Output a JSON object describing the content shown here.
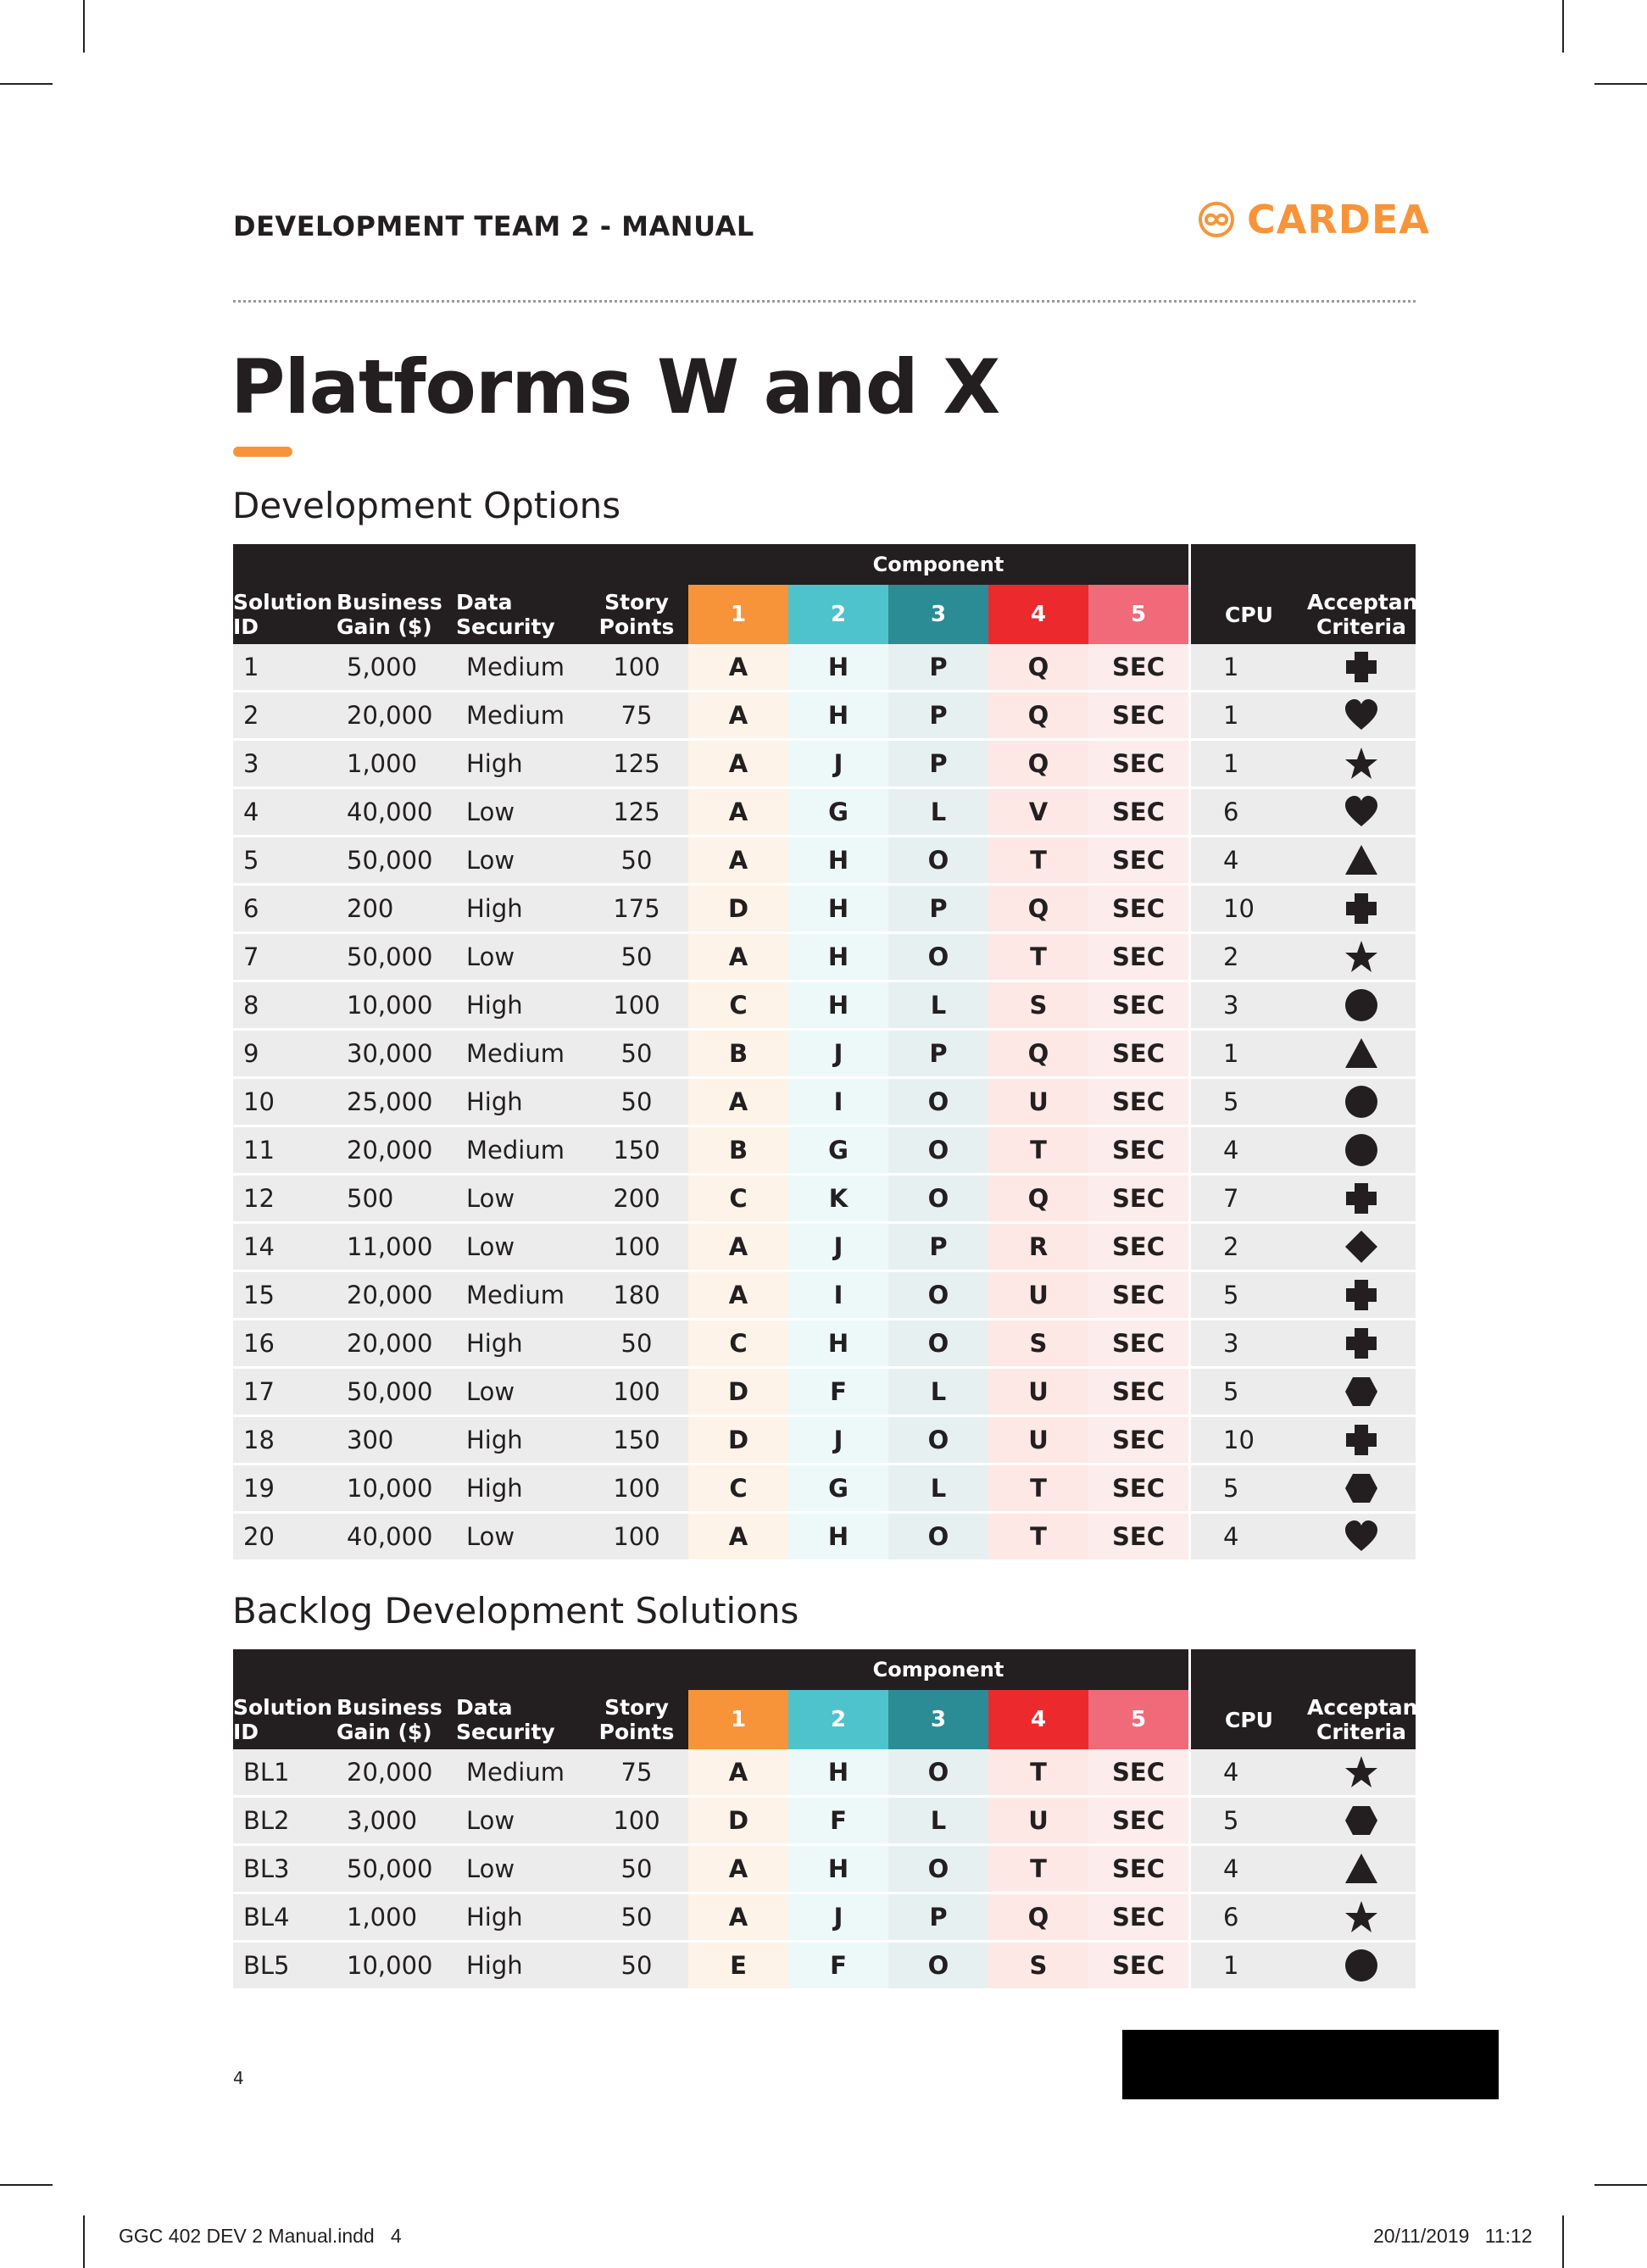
{
  "header": {
    "doc_title": "DEVELOPMENT TEAM 2 - MANUAL",
    "brand": "CARDEA",
    "brand_color": "#f7943a"
  },
  "page_title": "Platforms W and X",
  "columns": {
    "component_group": "Component",
    "solution_id": [
      "Solution",
      "ID"
    ],
    "business_gain": [
      "Business",
      "Gain ($)"
    ],
    "data_security": [
      "Data",
      "Security"
    ],
    "story_points": [
      "Story",
      "Points"
    ],
    "components": [
      "1",
      "2",
      "3",
      "4",
      "5"
    ],
    "cpu": "CPU",
    "acceptance": [
      "Acceptance",
      "Criteria"
    ]
  },
  "component_colors": [
    "#f7943a",
    "#4fc3cc",
    "#2b8c96",
    "#ec2a2d",
    "#f06a79"
  ],
  "development_options": {
    "title": "Development Options",
    "rows": [
      {
        "id": "1",
        "gain": "5,000",
        "security": "Medium",
        "points": "100",
        "c": [
          "A",
          "H",
          "P",
          "Q",
          "SEC"
        ],
        "cpu": "1",
        "criteria": "cross"
      },
      {
        "id": "2",
        "gain": "20,000",
        "security": "Medium",
        "points": "75",
        "c": [
          "A",
          "H",
          "P",
          "Q",
          "SEC"
        ],
        "cpu": "1",
        "criteria": "heart"
      },
      {
        "id": "3",
        "gain": "1,000",
        "security": "High",
        "points": "125",
        "c": [
          "A",
          "J",
          "P",
          "Q",
          "SEC"
        ],
        "cpu": "1",
        "criteria": "star"
      },
      {
        "id": "4",
        "gain": "40,000",
        "security": "Low",
        "points": "125",
        "c": [
          "A",
          "G",
          "L",
          "V",
          "SEC"
        ],
        "cpu": "6",
        "criteria": "heart"
      },
      {
        "id": "5",
        "gain": "50,000",
        "security": "Low",
        "points": "50",
        "c": [
          "A",
          "H",
          "O",
          "T",
          "SEC"
        ],
        "cpu": "4",
        "criteria": "triangle"
      },
      {
        "id": "6",
        "gain": "200",
        "security": "High",
        "points": "175",
        "c": [
          "D",
          "H",
          "P",
          "Q",
          "SEC"
        ],
        "cpu": "10",
        "criteria": "cross"
      },
      {
        "id": "7",
        "gain": "50,000",
        "security": "Low",
        "points": "50",
        "c": [
          "A",
          "H",
          "O",
          "T",
          "SEC"
        ],
        "cpu": "2",
        "criteria": "star"
      },
      {
        "id": "8",
        "gain": "10,000",
        "security": "High",
        "points": "100",
        "c": [
          "C",
          "H",
          "L",
          "S",
          "SEC"
        ],
        "cpu": "3",
        "criteria": "circle"
      },
      {
        "id": "9",
        "gain": "30,000",
        "security": "Medium",
        "points": "50",
        "c": [
          "B",
          "J",
          "P",
          "Q",
          "SEC"
        ],
        "cpu": "1",
        "criteria": "triangle"
      },
      {
        "id": "10",
        "gain": "25,000",
        "security": "High",
        "points": "50",
        "c": [
          "A",
          "I",
          "O",
          "U",
          "SEC"
        ],
        "cpu": "5",
        "criteria": "circle"
      },
      {
        "id": "11",
        "gain": "20,000",
        "security": "Medium",
        "points": "150",
        "c": [
          "B",
          "G",
          "O",
          "T",
          "SEC"
        ],
        "cpu": "4",
        "criteria": "circle"
      },
      {
        "id": "12",
        "gain": "500",
        "security": "Low",
        "points": "200",
        "c": [
          "C",
          "K",
          "O",
          "Q",
          "SEC"
        ],
        "cpu": "7",
        "criteria": "cross"
      },
      {
        "id": "14",
        "gain": "11,000",
        "security": "Low",
        "points": "100",
        "c": [
          "A",
          "J",
          "P",
          "R",
          "SEC"
        ],
        "cpu": "2",
        "criteria": "diamond"
      },
      {
        "id": "15",
        "gain": "20,000",
        "security": "Medium",
        "points": "180",
        "c": [
          "A",
          "I",
          "O",
          "U",
          "SEC"
        ],
        "cpu": "5",
        "criteria": "cross"
      },
      {
        "id": "16",
        "gain": "20,000",
        "security": "High",
        "points": "50",
        "c": [
          "C",
          "H",
          "O",
          "S",
          "SEC"
        ],
        "cpu": "3",
        "criteria": "cross"
      },
      {
        "id": "17",
        "gain": "50,000",
        "security": "Low",
        "points": "100",
        "c": [
          "D",
          "F",
          "L",
          "U",
          "SEC"
        ],
        "cpu": "5",
        "criteria": "hexagon"
      },
      {
        "id": "18",
        "gain": "300",
        "security": "High",
        "points": "150",
        "c": [
          "D",
          "J",
          "O",
          "U",
          "SEC"
        ],
        "cpu": "10",
        "criteria": "cross"
      },
      {
        "id": "19",
        "gain": "10,000",
        "security": "High",
        "points": "100",
        "c": [
          "C",
          "G",
          "L",
          "T",
          "SEC"
        ],
        "cpu": "5",
        "criteria": "hexagon"
      },
      {
        "id": "20",
        "gain": "40,000",
        "security": "Low",
        "points": "100",
        "c": [
          "A",
          "H",
          "O",
          "T",
          "SEC"
        ],
        "cpu": "4",
        "criteria": "heart"
      }
    ]
  },
  "backlog": {
    "title": "Backlog Development Solutions",
    "rows": [
      {
        "id": "BL1",
        "gain": "20,000",
        "security": "Medium",
        "points": "75",
        "c": [
          "A",
          "H",
          "O",
          "T",
          "SEC"
        ],
        "cpu": "4",
        "criteria": "star"
      },
      {
        "id": "BL2",
        "gain": "3,000",
        "security": "Low",
        "points": "100",
        "c": [
          "D",
          "F",
          "L",
          "U",
          "SEC"
        ],
        "cpu": "5",
        "criteria": "hexagon"
      },
      {
        "id": "BL3",
        "gain": "50,000",
        "security": "Low",
        "points": "50",
        "c": [
          "A",
          "H",
          "O",
          "T",
          "SEC"
        ],
        "cpu": "4",
        "criteria": "triangle"
      },
      {
        "id": "BL4",
        "gain": "1,000",
        "security": "High",
        "points": "50",
        "c": [
          "A",
          "J",
          "P",
          "Q",
          "SEC"
        ],
        "cpu": "6",
        "criteria": "star"
      },
      {
        "id": "BL5",
        "gain": "10,000",
        "security": "High",
        "points": "50",
        "c": [
          "E",
          "F",
          "O",
          "S",
          "SEC"
        ],
        "cpu": "1",
        "criteria": "circle"
      }
    ]
  },
  "footer": {
    "page_number": "4",
    "slug_file": "GGC 402 DEV 2 Manual.indd   4",
    "slug_date": "20/11/2019 11:12"
  }
}
